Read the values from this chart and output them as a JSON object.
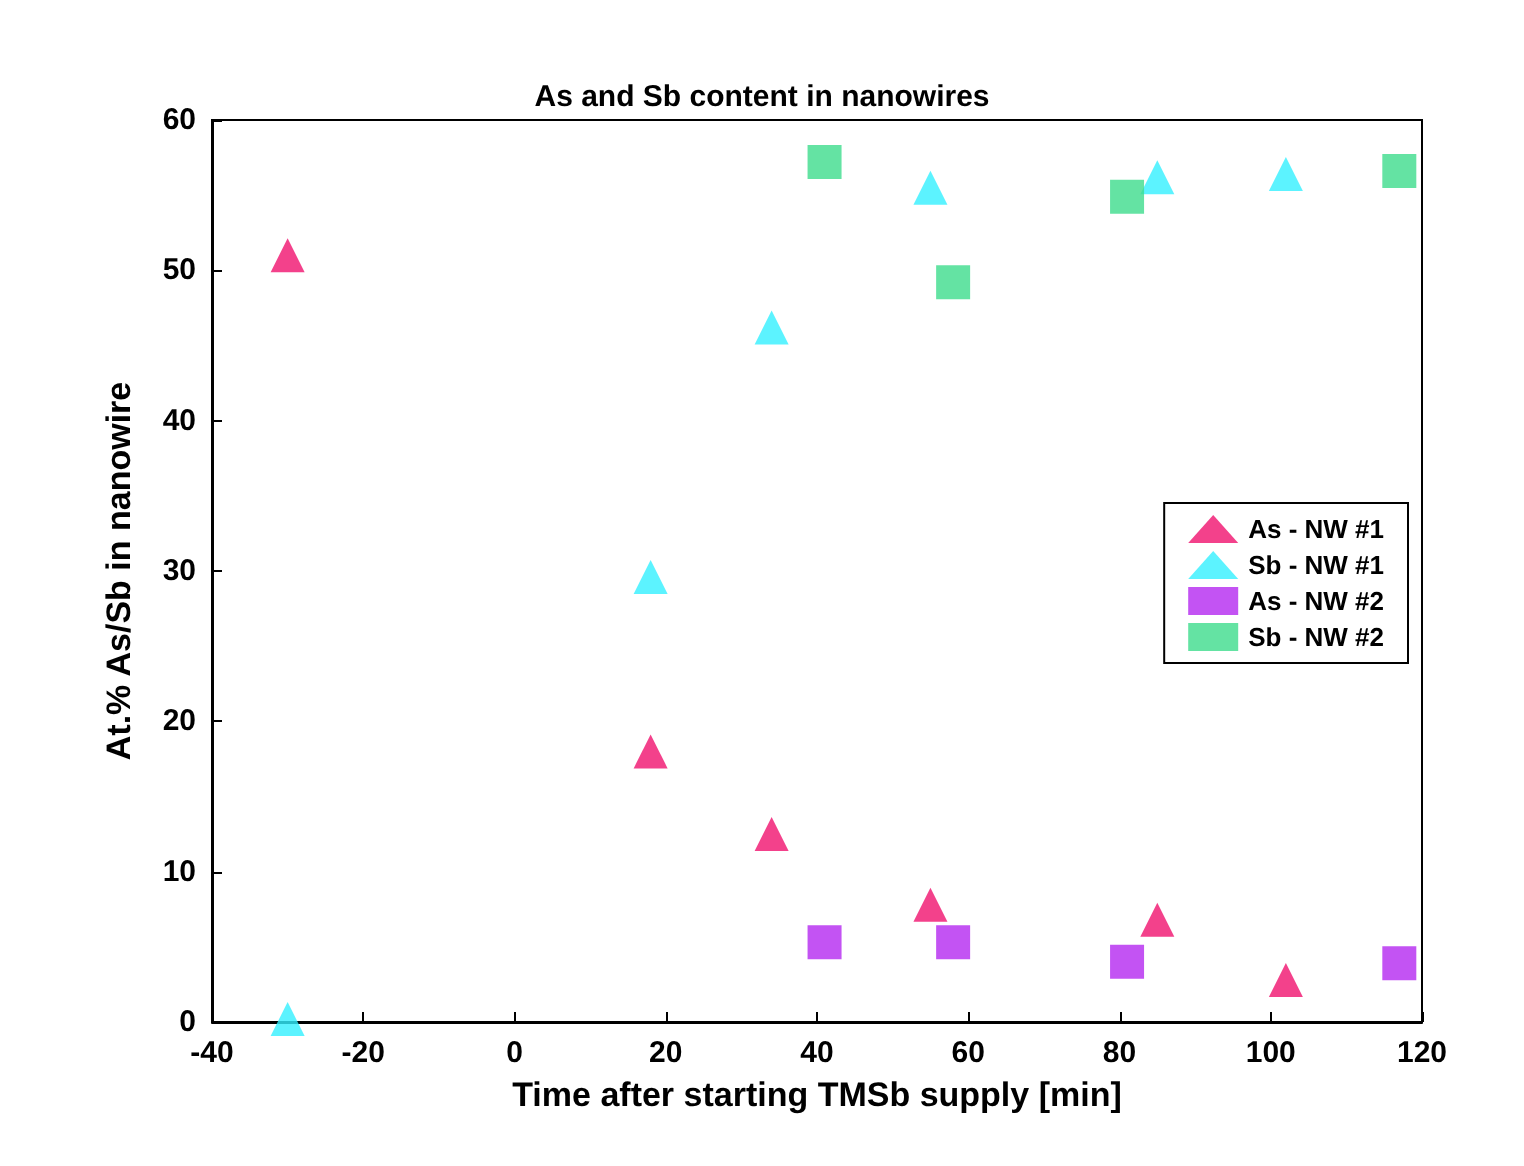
{
  "chart_data": {
    "type": "scatter",
    "title": "As and Sb content in nanowires",
    "xlabel": "Time after starting TMSb supply [min]",
    "ylabel": "At.% As/Sb in nanowire",
    "xlim": [
      -40,
      120
    ],
    "xticks": [
      -40,
      -20,
      0,
      20,
      40,
      60,
      80,
      100,
      120
    ],
    "ylim": [
      0,
      60
    ],
    "yticks": [
      0,
      10,
      20,
      30,
      40,
      50,
      60
    ],
    "grid": false,
    "legend": "right",
    "series": [
      {
        "name": "As - NW #1",
        "color": "#f0126e",
        "marker": "triangle",
        "x": [
          -30,
          18,
          34,
          55,
          85,
          102
        ],
        "values": [
          51,
          18,
          12.5,
          7.8,
          6.8,
          2.8
        ]
      },
      {
        "name": "Sb - NW #1",
        "color": "#33f0ff",
        "marker": "triangle",
        "x": [
          -30,
          18,
          34,
          55,
          85,
          102
        ],
        "values": [
          0.2,
          29.6,
          46.2,
          55.5,
          56.2,
          56.4
        ]
      },
      {
        "name": "As - NW #2",
        "color": "#b428f0",
        "marker": "square",
        "x": [
          41,
          58,
          81,
          117
        ],
        "values": [
          5.3,
          5.3,
          4.0,
          3.9
        ]
      },
      {
        "name": "Sb - NW #2",
        "color": "#3ddc8c",
        "marker": "square",
        "x": [
          41,
          58,
          81,
          117
        ],
        "values": [
          57.2,
          49.2,
          54.9,
          56.6
        ]
      }
    ]
  }
}
